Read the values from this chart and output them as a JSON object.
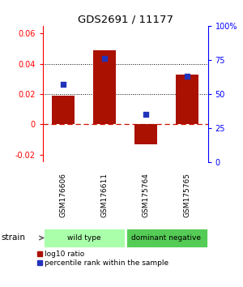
{
  "title": "GDS2691 / 11177",
  "samples": [
    "GSM176606",
    "GSM176611",
    "GSM175764",
    "GSM175765"
  ],
  "log10_ratio": [
    0.019,
    0.049,
    -0.013,
    0.033
  ],
  "percentile_rank": [
    0.57,
    0.76,
    0.35,
    0.63
  ],
  "groups": [
    {
      "label": "wild type",
      "samples": [
        0,
        1
      ],
      "color": "#aaffaa"
    },
    {
      "label": "dominant negative",
      "samples": [
        2,
        3
      ],
      "color": "#55cc55"
    }
  ],
  "bar_color": "#aa1100",
  "dot_color": "#2233bb",
  "ylim_left": [
    -0.025,
    0.065
  ],
  "ylim_right": [
    0,
    1.0
  ],
  "yticks_left": [
    -0.02,
    0.0,
    0.02,
    0.04,
    0.06
  ],
  "yticks_right": [
    0,
    0.25,
    0.5,
    0.75,
    1.0
  ],
  "ytick_labels_left": [
    "-0.02",
    "0",
    "0.02",
    "0.04",
    "0.06"
  ],
  "ytick_labels_right": [
    "0",
    "25",
    "50",
    "75",
    "100%"
  ],
  "hlines": [
    0.02,
    0.04
  ],
  "background_color": "#ffffff",
  "bar_width": 0.55,
  "sample_box_color": "#c8c8c8",
  "legend_labels": [
    "log10 ratio",
    "percentile rank within the sample"
  ]
}
